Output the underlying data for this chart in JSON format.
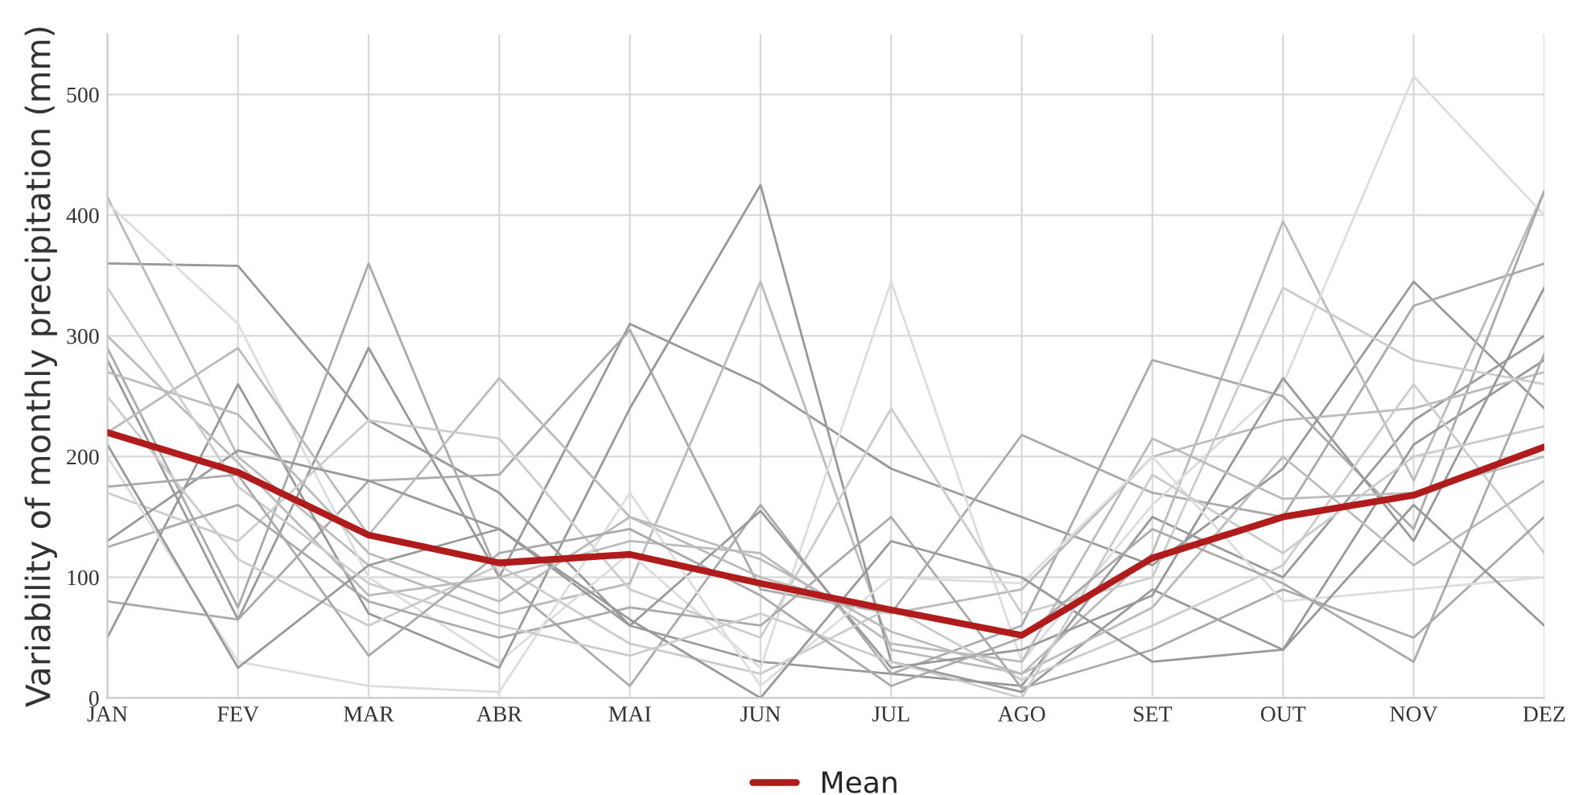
{
  "chart_data": {
    "type": "line",
    "ylabel": "Variability of monthly precipitation (mm)",
    "categories": [
      "JAN",
      "FEV",
      "MAR",
      "ABR",
      "MAI",
      "JUN",
      "JUL",
      "AGO",
      "SET",
      "OUT",
      "NOV",
      "DEZ"
    ],
    "ylim": [
      0,
      550
    ],
    "yticks": [
      0,
      100,
      200,
      300,
      400,
      500
    ],
    "grid": true,
    "legend": "bottom",
    "series": [
      {
        "color": "#999999",
        "values": [
          360,
          358,
          230,
          170,
          60,
          30,
          20,
          10,
          150,
          100,
          230,
          300
        ]
      },
      {
        "color": "#999999",
        "values": [
          280,
          65,
          290,
          100,
          310,
          260,
          190,
          150,
          110,
          190,
          345,
          240
        ]
      },
      {
        "color": "#aaaaaa",
        "values": [
          80,
          65,
          180,
          185,
          305,
          90,
          70,
          218,
          170,
          150,
          325,
          360
        ]
      },
      {
        "color": "#bbbbbb",
        "values": [
          415,
          200,
          110,
          70,
          95,
          345,
          40,
          20,
          120,
          395,
          180,
          420
        ]
      },
      {
        "color": "#dddddd",
        "values": [
          410,
          310,
          100,
          30,
          120,
          25,
          345,
          30,
          160,
          260,
          515,
          400
        ]
      },
      {
        "color": "#999999",
        "values": [
          50,
          260,
          70,
          25,
          240,
          425,
          30,
          5,
          90,
          40,
          210,
          280
        ]
      },
      {
        "color": "#aaaaaa",
        "values": [
          290,
          75,
          360,
          100,
          10,
          160,
          20,
          60,
          280,
          250,
          140,
          420
        ]
      },
      {
        "color": "#bbbbbb",
        "values": [
          220,
          290,
          135,
          265,
          150,
          100,
          70,
          90,
          200,
          230,
          240,
          270
        ]
      },
      {
        "color": "#cccccc",
        "values": [
          170,
          130,
          230,
          215,
          90,
          50,
          240,
          70,
          100,
          340,
          280,
          260
        ]
      },
      {
        "color": "#999999",
        "values": [
          130,
          205,
          180,
          140,
          60,
          155,
          25,
          40,
          85,
          265,
          130,
          340
        ]
      },
      {
        "color": "#bbbbbb",
        "values": [
          300,
          195,
          85,
          100,
          130,
          120,
          45,
          30,
          215,
          165,
          170,
          200
        ]
      },
      {
        "color": "#cccccc",
        "values": [
          250,
          115,
          60,
          110,
          45,
          20,
          75,
          15,
          60,
          110,
          260,
          120
        ]
      },
      {
        "color": "#aaaaaa",
        "values": [
          125,
          160,
          80,
          50,
          75,
          60,
          150,
          8,
          40,
          90,
          50,
          150
        ]
      },
      {
        "color": "#dddddd",
        "values": [
          200,
          30,
          10,
          5,
          170,
          10,
          100,
          95,
          200,
          80,
          90,
          100
        ]
      },
      {
        "color": "#999999",
        "values": [
          210,
          25,
          110,
          140,
          65,
          0,
          130,
          100,
          30,
          40,
          160,
          60
        ]
      },
      {
        "color": "#bbbbbb",
        "values": [
          270,
          235,
          120,
          80,
          150,
          115,
          55,
          20,
          75,
          200,
          110,
          180
        ]
      },
      {
        "color": "#cccccc",
        "values": [
          340,
          175,
          95,
          60,
          35,
          70,
          30,
          0,
          185,
          120,
          200,
          225
        ]
      },
      {
        "color": "#aaaaaa",
        "values": [
          175,
          185,
          35,
          120,
          140,
          85,
          10,
          50,
          140,
          95,
          30,
          285
        ]
      },
      {
        "name": "Mean",
        "color": "#b01c1c",
        "values": [
          220,
          187,
          135,
          112,
          119,
          95,
          73,
          52,
          116,
          150,
          168,
          208
        ]
      }
    ]
  }
}
